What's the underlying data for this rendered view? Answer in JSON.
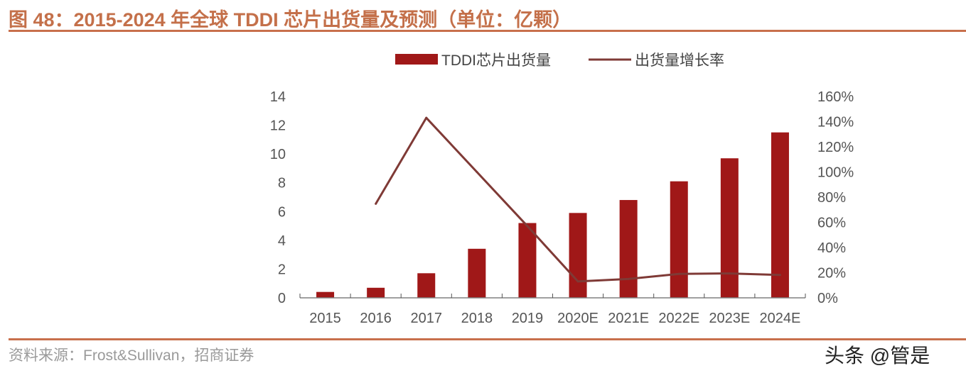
{
  "title": "图 48：2015-2024 年全球 TDDI 芯片出货量及预测（单位：亿颗）",
  "source": "资料来源：Frost&Sullivan，招商证券",
  "watermark": "头条 @管是",
  "colors": {
    "bar": "#a01818",
    "line": "#7f3a36",
    "title": "#c4704a"
  },
  "chart_data": {
    "type": "bar+line",
    "title": "2015-2024 年全球 TDDI 芯片出货量及预测（单位：亿颗）",
    "categories": [
      "2015",
      "2016",
      "2017",
      "2018",
      "2019",
      "2020E",
      "2021E",
      "2022E",
      "2023E",
      "2024E"
    ],
    "series": [
      {
        "name": "TDDI芯片出货量",
        "type": "bar",
        "axis": "left",
        "values": [
          0.41,
          0.7,
          1.71,
          3.41,
          5.2,
          5.9,
          6.8,
          8.1,
          9.7,
          11.5
        ]
      },
      {
        "name": "出货量增长率",
        "type": "line",
        "axis": "right",
        "values": [
          null,
          74.7,
          143,
          100,
          57,
          13,
          15,
          19,
          19.4,
          18.2
        ]
      }
    ],
    "left_axis": {
      "min": 0,
      "max": 14,
      "ticks": [
        "0",
        "2",
        "4",
        "6",
        "8",
        "10",
        "12",
        "14"
      ]
    },
    "right_axis": {
      "min": 0,
      "max": 160,
      "ticks": [
        "0%",
        "20%",
        "40%",
        "60%",
        "80%",
        "100%",
        "120%",
        "140%",
        "160%"
      ]
    },
    "legend": "top-center",
    "grid": false
  }
}
